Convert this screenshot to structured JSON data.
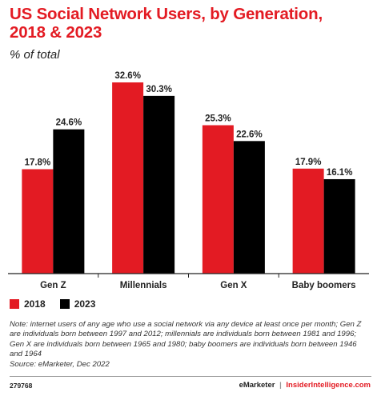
{
  "title": "US Social Network Users, by Generation, 2018 & 2023",
  "subtitle": "% of total",
  "colors": {
    "series_2018": "#e31b23",
    "series_2023": "#000000",
    "accent": "#e31b23"
  },
  "chart_data": {
    "type": "bar",
    "categories": [
      "Gen Z",
      "Millennials",
      "Gen X",
      "Baby boomers"
    ],
    "series": [
      {
        "name": "2018",
        "values": [
          17.8,
          32.6,
          25.3,
          17.9
        ],
        "labels": [
          "17.8%",
          "32.6%",
          "25.3%",
          "17.9%"
        ]
      },
      {
        "name": "2023",
        "values": [
          24.6,
          30.3,
          22.6,
          16.1
        ],
        "labels": [
          "24.6%",
          "30.3%",
          "22.6%",
          "16.1%"
        ]
      }
    ],
    "title": "US Social Network Users, by Generation, 2018 & 2023",
    "ylabel": "% of total",
    "ylim": [
      0,
      32.6
    ],
    "grid": false,
    "legend": "bottom-left"
  },
  "note": "Note: internet users of any age who use a social network via any device at least once per month; Gen Z are individuals born between 1997 and 2012; millennials are individuals born between 1981 and 1996; Gen X are individuals born between 1965 and 1980; baby boomers are individuals born between 1946 and 1964",
  "source": "Source: eMarketer, Dec 2022",
  "chart_id": "279768",
  "brand": {
    "emarketer": "eMarketer",
    "separator": "|",
    "insider": "InsiderIntelligence.com"
  }
}
